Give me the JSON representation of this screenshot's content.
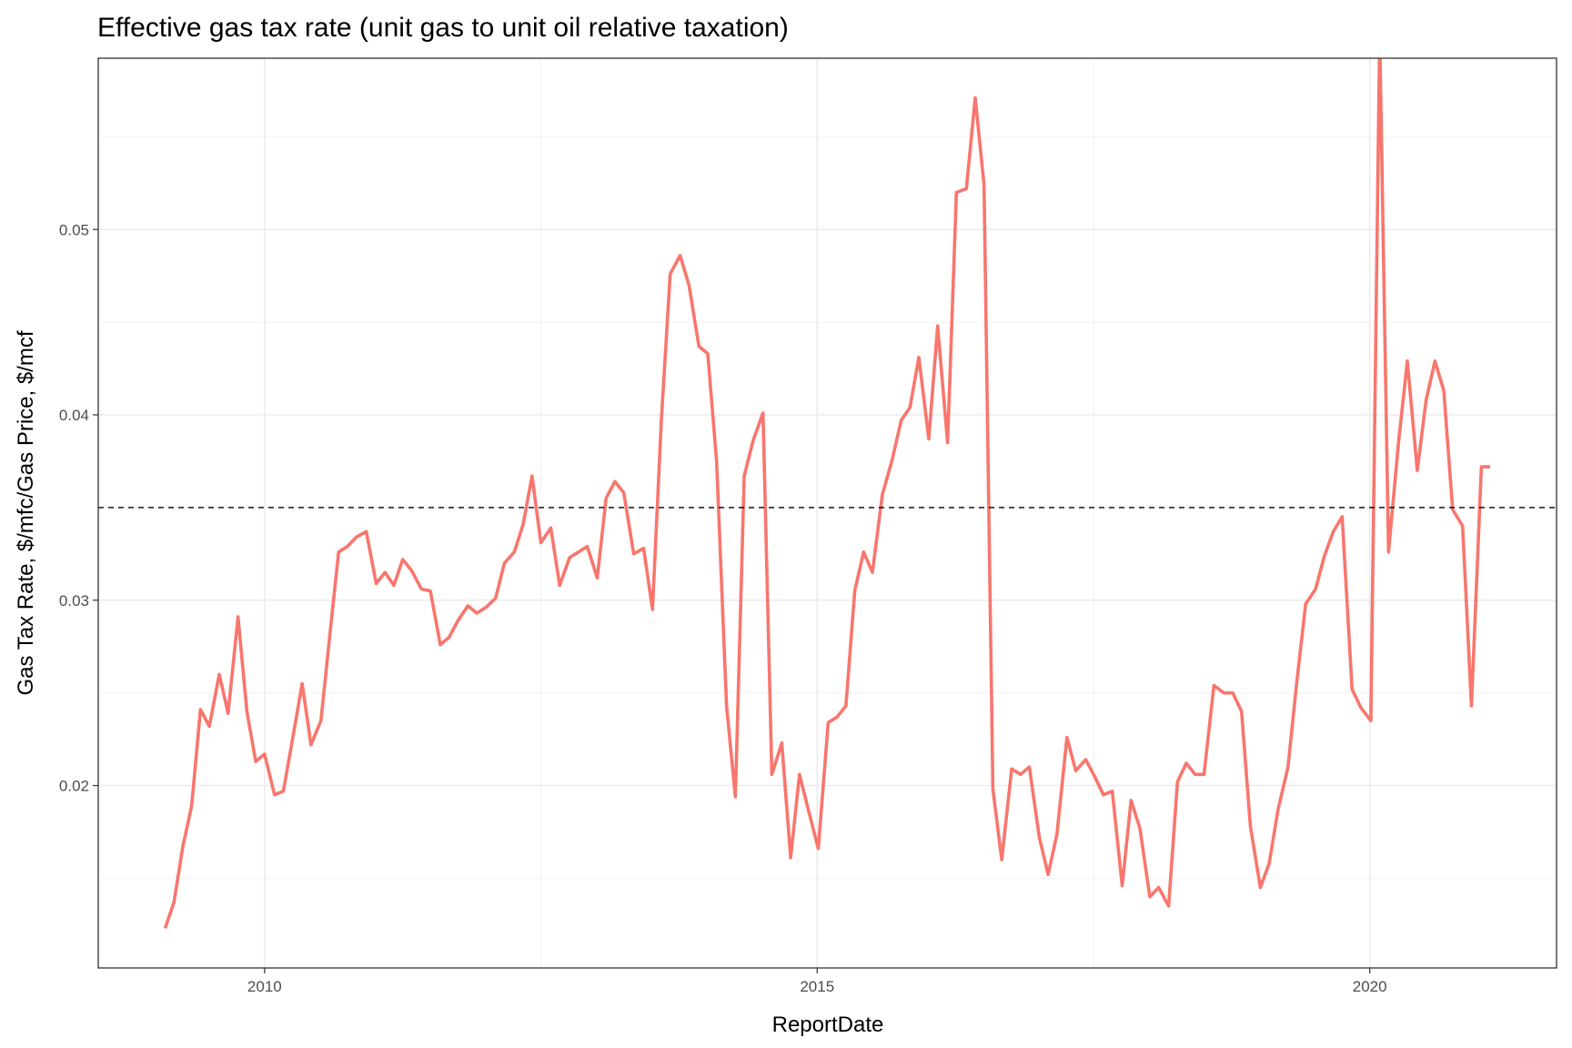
{
  "chart_data": {
    "type": "line",
    "title": "Effective gas tax rate (unit gas to unit oil relative taxation)",
    "x_label": "ReportDate",
    "y_label": "Gas Tax Rate, $/mfc/Gas Price, $/mcf",
    "color": "#f8766d",
    "hline": 0.035,
    "grid": true,
    "xlim": [
      2008.495,
      2021.69
    ],
    "ylim": [
      0.01016,
      0.05924
    ],
    "xticks": [
      2010,
      2015,
      2020
    ],
    "yticks": [
      0.02,
      0.03,
      0.04,
      0.05
    ],
    "x": [
      2009.1,
      2009.18,
      2009.26,
      2009.34,
      2009.42,
      2009.5,
      2009.59,
      2009.67,
      2009.76,
      2009.84,
      2009.92,
      2010.0,
      2010.09,
      2010.17,
      2010.25,
      2010.34,
      2010.42,
      2010.51,
      2010.59,
      2010.67,
      2010.75,
      2010.83,
      2010.92,
      2011.01,
      2011.09,
      2011.17,
      2011.25,
      2011.33,
      2011.42,
      2011.5,
      2011.59,
      2011.67,
      2011.75,
      2011.84,
      2011.92,
      2012.0,
      2012.09,
      2012.17,
      2012.26,
      2012.34,
      2012.42,
      2012.5,
      2012.59,
      2012.67,
      2012.76,
      2012.84,
      2012.92,
      2013.01,
      2013.09,
      2013.17,
      2013.25,
      2013.34,
      2013.43,
      2013.51,
      2013.59,
      2013.67,
      2013.76,
      2013.84,
      2013.93,
      2014.01,
      2014.09,
      2014.18,
      2014.26,
      2014.34,
      2014.42,
      2014.51,
      2014.59,
      2014.68,
      2014.76,
      2014.84,
      2014.92,
      2015.01,
      2015.1,
      2015.18,
      2015.26,
      2015.34,
      2015.42,
      2015.5,
      2015.59,
      2015.68,
      2015.76,
      2015.84,
      2015.92,
      2016.01,
      2016.09,
      2016.18,
      2016.26,
      2016.35,
      2016.43,
      2016.51,
      2016.59,
      2016.67,
      2016.76,
      2016.84,
      2016.92,
      2017.01,
      2017.09,
      2017.17,
      2017.26,
      2017.34,
      2017.43,
      2017.51,
      2017.59,
      2017.67,
      2017.76,
      2017.84,
      2017.92,
      2018.01,
      2018.09,
      2018.18,
      2018.26,
      2018.34,
      2018.42,
      2018.5,
      2018.59,
      2018.68,
      2018.76,
      2018.84,
      2018.92,
      2019.01,
      2019.09,
      2019.17,
      2019.26,
      2019.34,
      2019.42,
      2019.51,
      2019.59,
      2019.67,
      2019.75,
      2019.84,
      2019.92,
      2020.01,
      2020.09,
      2020.17,
      2020.26,
      2020.34,
      2020.43,
      2020.51,
      2020.59,
      2020.67,
      2020.75,
      2020.84,
      2020.92,
      2021.01,
      2021.09
    ],
    "values": [
      0.0123,
      0.0137,
      0.0167,
      0.0189,
      0.0241,
      0.0232,
      0.026,
      0.0239,
      0.0291,
      0.024,
      0.0213,
      0.0217,
      0.0195,
      0.0197,
      0.0224,
      0.0255,
      0.0222,
      0.0235,
      0.0281,
      0.0326,
      0.0329,
      0.0334,
      0.0337,
      0.0309,
      0.0315,
      0.0308,
      0.0322,
      0.0316,
      0.0306,
      0.0305,
      0.0276,
      0.028,
      0.0289,
      0.0297,
      0.0293,
      0.0296,
      0.0301,
      0.032,
      0.0326,
      0.0341,
      0.0367,
      0.0331,
      0.0339,
      0.0308,
      0.0323,
      0.0326,
      0.0329,
      0.0312,
      0.0355,
      0.0364,
      0.0358,
      0.0325,
      0.0328,
      0.0295,
      0.0397,
      0.0476,
      0.0486,
      0.047,
      0.0437,
      0.0433,
      0.0375,
      0.0243,
      0.0194,
      0.0367,
      0.0386,
      0.0401,
      0.0206,
      0.0223,
      0.0161,
      0.0206,
      0.0187,
      0.0166,
      0.0234,
      0.0237,
      0.0243,
      0.0305,
      0.0326,
      0.0315,
      0.0357,
      0.0376,
      0.0397,
      0.0404,
      0.0431,
      0.0387,
      0.0448,
      0.0385,
      0.052,
      0.0522,
      0.0571,
      0.0524,
      0.0198,
      0.016,
      0.0209,
      0.0206,
      0.021,
      0.0172,
      0.0152,
      0.0174,
      0.0226,
      0.0208,
      0.0214,
      0.0205,
      0.0195,
      0.0197,
      0.0146,
      0.0192,
      0.0177,
      0.014,
      0.0145,
      0.0135,
      0.0202,
      0.0212,
      0.0206,
      0.0206,
      0.0254,
      0.025,
      0.025,
      0.024,
      0.0178,
      0.0145,
      0.0158,
      0.0187,
      0.021,
      0.0256,
      0.0298,
      0.0306,
      0.0324,
      0.0337,
      0.0345,
      0.0252,
      0.0242,
      0.0235,
      0.0605,
      0.0326,
      0.0385,
      0.0429,
      0.037,
      0.0408,
      0.0429,
      0.0413,
      0.0349,
      0.034,
      0.0243,
      0.0372,
      0.0372
    ]
  }
}
